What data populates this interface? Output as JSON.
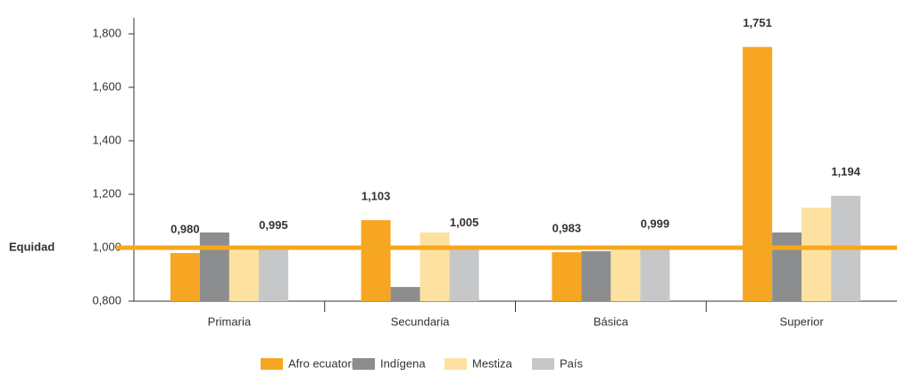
{
  "chart_data": {
    "type": "bar",
    "categories": [
      "Primaria",
      "Secundaria",
      "Básica",
      "Superior"
    ],
    "series": [
      {
        "name": "Afro ecuatoriana",
        "color": "#f6a623",
        "values": [
          0.98,
          1.103,
          0.983,
          1.751
        ],
        "value_labels": [
          "0,980",
          "1,103",
          "0,983",
          "1,751"
        ]
      },
      {
        "name": "Indígena",
        "color": "#8c8d8f",
        "values": [
          1.057,
          0.853,
          0.987,
          1.057
        ]
      },
      {
        "name": "Mestiza",
        "color": "#fde1a0",
        "values": [
          0.99,
          1.057,
          0.99,
          1.15
        ]
      },
      {
        "name": "País",
        "color": "#c6c7c9",
        "values": [
          0.995,
          1.005,
          0.999,
          1.194
        ],
        "value_labels": [
          "0,995",
          "1,005",
          "0,999",
          "1,194"
        ]
      }
    ],
    "ylim": [
      0.8,
      1.86
    ],
    "yticks": [
      {
        "value": 0.8,
        "label": "0,800"
      },
      {
        "value": 1.0,
        "label": "1,000"
      },
      {
        "value": 1.2,
        "label": "1,200"
      },
      {
        "value": 1.4,
        "label": "1,400"
      },
      {
        "value": 1.6,
        "label": "1,600"
      },
      {
        "value": 1.8,
        "label": "1,800"
      }
    ],
    "grid": false,
    "reference_line": {
      "value": 1.0,
      "label": "Equidad",
      "color": "#f6a81c"
    },
    "legend": "bottom"
  }
}
